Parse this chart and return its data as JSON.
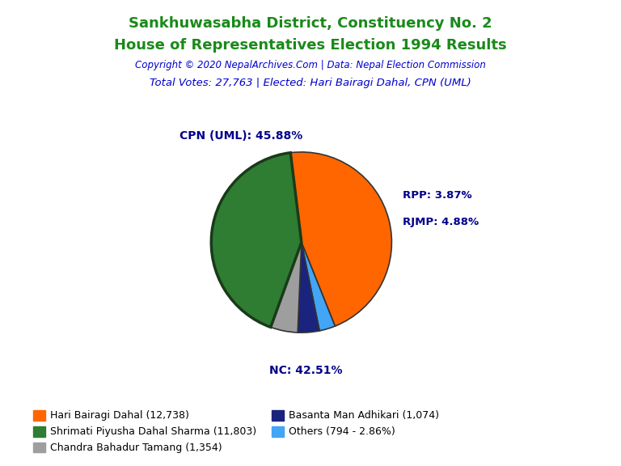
{
  "title_line1": "Sankhuwasabha District, Constituency No. 2",
  "title_line2": "House of Representatives Election 1994 Results",
  "title_color": "#1a8a1a",
  "copyright_text": "Copyright © 2020 NepalArchives.Com | Data: Nepal Election Commission",
  "copyright_color": "#0000CD",
  "total_votes_text": "Total Votes: 27,763 | Elected: Hari Bairagi Dahal, CPN (UML)",
  "total_votes_color": "#0000CD",
  "slices": [
    {
      "label": "CPN (UML)",
      "value": 12738,
      "pct": 45.88,
      "color": "#FF6600"
    },
    {
      "label": "Others",
      "value": 794,
      "pct": 2.86,
      "color": "#42A5F5"
    },
    {
      "label": "RPP",
      "value": 1074,
      "pct": 3.87,
      "color": "#1A237E"
    },
    {
      "label": "RJMP",
      "value": 1354,
      "pct": 4.88,
      "color": "#9E9E9E"
    },
    {
      "label": "NC",
      "value": 11803,
      "pct": 42.51,
      "color": "#2E7D32"
    }
  ],
  "label_color": "#00008B",
  "legend_entries": [
    {
      "text": "Hari Bairagi Dahal (12,738)",
      "color": "#FF6600"
    },
    {
      "text": "Shrimati Piyusha Dahal Sharma (11,803)",
      "color": "#2E7D32"
    },
    {
      "text": "Chandra Bahadur Tamang (1,354)",
      "color": "#9E9E9E"
    },
    {
      "text": "Basanta Man Adhikari (1,074)",
      "color": "#1A237E"
    },
    {
      "text": "Others (794 - 2.86%)",
      "color": "#42A5F5"
    }
  ],
  "bg_color": "#FFFFFF",
  "startangle": 97
}
